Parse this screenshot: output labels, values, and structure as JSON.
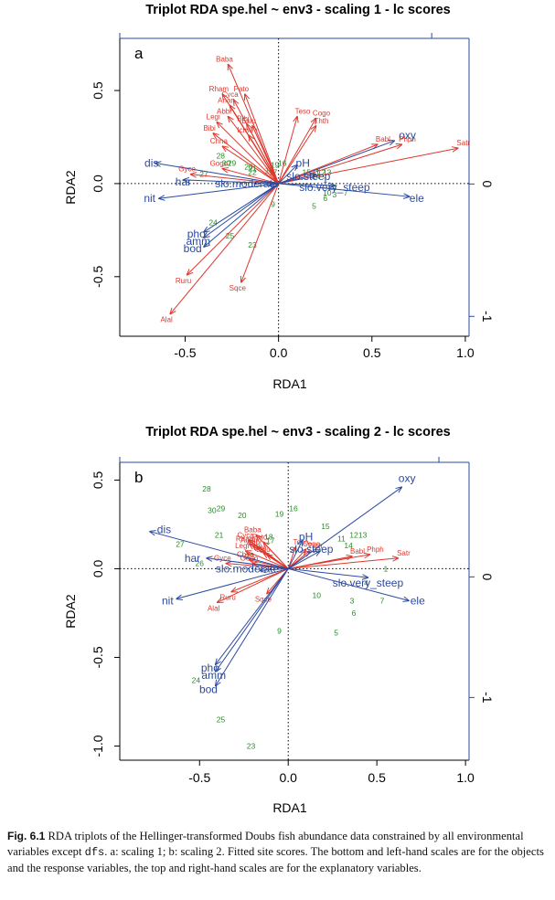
{
  "figure_caption": {
    "label": "Fig. 6.1",
    "text_before_code": "RDA triplots of the Hellinger-transformed Doubs fish abundance data constrained by all environmental variables except ",
    "code": "dfs",
    "text_after_code": ". a: scaling 1; b: scaling 2. Fitted site scores. The bottom and left-hand scales are for the objects and the response variables, the top and right-hand scales are for the explanatory variables."
  },
  "colors": {
    "species": "#e0362c",
    "env": "#2b4aa0",
    "sites": "#2d8a2d",
    "axis": "#000000",
    "panel_frame": "#000000",
    "secondary_axis": "#2b4aa0"
  },
  "chart_data": [
    {
      "type": "scatter",
      "panel_label": "a",
      "title": "Triplot RDA spe.hel ~ env3 - scaling 1 - lc scores",
      "xlabel": "RDA1",
      "ylabel": "RDA2",
      "xlim": [
        -0.85,
        1.02
      ],
      "ylim": [
        -0.82,
        0.78
      ],
      "xticks": [
        -0.5,
        0.0,
        0.5,
        1.0
      ],
      "xtick_labels": [
        "-0.5",
        "0.0",
        "0.5",
        "1.0"
      ],
      "yticks": [
        -0.5,
        0.0,
        0.5
      ],
      "ytick_labels": [
        "-0.5",
        "0.0",
        "0.5"
      ],
      "right_axis": {
        "range": [
          -1.15,
          1.1
        ],
        "ticks": [
          -1,
          0
        ],
        "tick_labels": [
          "-1",
          "0"
        ]
      },
      "top_axis_ticks": [
        -0.85,
        0.82
      ],
      "reference_lines": {
        "x": 0,
        "y": 0,
        "style": "dotted"
      },
      "grid": false,
      "species_arrows": [
        {
          "name": "Baba",
          "x": -0.27,
          "y": 0.64
        },
        {
          "name": "Rham",
          "x": -0.3,
          "y": 0.48
        },
        {
          "name": "Pato",
          "x": -0.18,
          "y": 0.48
        },
        {
          "name": "Cyca",
          "x": -0.24,
          "y": 0.45
        },
        {
          "name": "Anan",
          "x": -0.26,
          "y": 0.42
        },
        {
          "name": "Abbr",
          "x": -0.27,
          "y": 0.36
        },
        {
          "name": "Legi",
          "x": -0.33,
          "y": 0.33
        },
        {
          "name": "Blbj",
          "x": -0.17,
          "y": 0.32
        },
        {
          "name": "Eslu",
          "x": -0.14,
          "y": 0.31
        },
        {
          "name": "Icme",
          "x": -0.16,
          "y": 0.26
        },
        {
          "name": "Bibi",
          "x": -0.35,
          "y": 0.27
        },
        {
          "name": "Chna",
          "x": -0.3,
          "y": 0.2
        },
        {
          "name": "Teso",
          "x": 0.1,
          "y": 0.36
        },
        {
          "name": "Cogo",
          "x": 0.2,
          "y": 0.35
        },
        {
          "name": "Thth",
          "x": 0.2,
          "y": 0.31
        },
        {
          "name": "Babl",
          "x": 0.53,
          "y": 0.21
        },
        {
          "name": "Phph",
          "x": 0.66,
          "y": 0.21
        },
        {
          "name": "Satr",
          "x": 0.96,
          "y": 0.19
        },
        {
          "name": "Gogo",
          "x": -0.3,
          "y": 0.08
        },
        {
          "name": "Gyce",
          "x": -0.47,
          "y": 0.05
        },
        {
          "name": "Ruru",
          "x": -0.49,
          "y": -0.49
        },
        {
          "name": "Alal",
          "x": -0.58,
          "y": -0.7
        },
        {
          "name": "Sqce",
          "x": -0.2,
          "y": -0.53
        }
      ],
      "env_arrows": [
        {
          "name": "oxy",
          "x": 0.62,
          "y": 0.23
        },
        {
          "name": "pH",
          "x": 0.1,
          "y": 0.1
        },
        {
          "name": "slo.steep",
          "x": 0.2,
          "y": 0.05
        },
        {
          "name": "slo.very_steep",
          "x": 0.3,
          "y": -0.01
        },
        {
          "name": "ele",
          "x": 0.7,
          "y": -0.07
        },
        {
          "name": "slo.moderate",
          "x": -0.05,
          "y": -0.01
        },
        {
          "name": "dis",
          "x": -0.66,
          "y": 0.11
        },
        {
          "name": "har",
          "x": -0.51,
          "y": 0.02
        },
        {
          "name": "nit",
          "x": -0.64,
          "y": -0.08
        },
        {
          "name": "pho",
          "x": -0.4,
          "y": -0.26
        },
        {
          "name": "amm",
          "x": -0.4,
          "y": -0.29
        },
        {
          "name": "bod",
          "x": -0.4,
          "y": -0.34
        }
      ],
      "env_labels": [
        {
          "name": "oxy",
          "x": 0.69,
          "y": 0.26
        },
        {
          "name": "pH",
          "x": 0.13,
          "y": 0.11
        },
        {
          "name": "slo.steep",
          "x": 0.16,
          "y": 0.04
        },
        {
          "name": "slo.very_steep",
          "x": 0.3,
          "y": -0.02
        },
        {
          "name": "ele",
          "x": 0.74,
          "y": -0.08
        },
        {
          "name": "slo.moderate",
          "x": -0.17,
          "y": 0.0
        },
        {
          "name": "dis",
          "x": -0.68,
          "y": 0.11
        },
        {
          "name": "har",
          "x": -0.51,
          "y": 0.01
        },
        {
          "name": "nit",
          "x": -0.69,
          "y": -0.08
        },
        {
          "name": "pho",
          "x": -0.44,
          "y": -0.27
        },
        {
          "name": "amm",
          "x": -0.43,
          "y": -0.31
        },
        {
          "name": "bod",
          "x": -0.46,
          "y": -0.35
        }
      ],
      "sites": [
        {
          "name": "28",
          "x": -0.31,
          "y": 0.15
        },
        {
          "name": "30",
          "x": -0.28,
          "y": 0.11
        },
        {
          "name": "29",
          "x": -0.25,
          "y": 0.11
        },
        {
          "name": "20",
          "x": -0.16,
          "y": 0.09
        },
        {
          "name": "21",
          "x": -0.14,
          "y": 0.08
        },
        {
          "name": "19",
          "x": -0.02,
          "y": 0.1
        },
        {
          "name": "16",
          "x": 0.02,
          "y": 0.11
        },
        {
          "name": "22",
          "x": -0.14,
          "y": 0.06
        },
        {
          "name": "18",
          "x": -0.05,
          "y": 0.07
        },
        {
          "name": "17",
          "x": -0.03,
          "y": 0.06
        },
        {
          "name": "15",
          "x": 0.15,
          "y": 0.06
        },
        {
          "name": "11",
          "x": 0.2,
          "y": 0.06
        },
        {
          "name": "12",
          "x": 0.23,
          "y": 0.06
        },
        {
          "name": "13",
          "x": 0.26,
          "y": 0.06
        },
        {
          "name": "14",
          "x": 0.2,
          "y": 0.04
        },
        {
          "name": "4",
          "x": 0.3,
          "y": -0.02
        },
        {
          "name": "10",
          "x": 0.26,
          "y": -0.05
        },
        {
          "name": "3",
          "x": 0.3,
          "y": -0.06
        },
        {
          "name": "6",
          "x": 0.25,
          "y": -0.08
        },
        {
          "name": "1",
          "x": 0.25,
          "y": 0.02
        },
        {
          "name": "7",
          "x": 0.36,
          "y": -0.05
        },
        {
          "name": "9",
          "x": -0.03,
          "y": -0.11
        },
        {
          "name": "5",
          "x": 0.19,
          "y": -0.12
        },
        {
          "name": "27",
          "x": -0.4,
          "y": 0.05
        },
        {
          "name": "24",
          "x": -0.35,
          "y": -0.21
        },
        {
          "name": "25",
          "x": -0.26,
          "y": -0.28
        },
        {
          "name": "23",
          "x": -0.14,
          "y": -0.33
        },
        {
          "name": "2",
          "x": 0.28,
          "y": -0.02
        }
      ]
    },
    {
      "type": "scatter",
      "panel_label": "b",
      "title": "Triplot RDA spe.hel ~ env3 - scaling 2 - lc scores",
      "xlabel": "RDA1",
      "ylabel": "RDA2",
      "xlim": [
        -0.95,
        1.02
      ],
      "ylim": [
        -1.08,
        0.6
      ],
      "xticks": [
        -0.5,
        0.0,
        0.5,
        1.0
      ],
      "xtick_labels": [
        "-0.5",
        "0.0",
        "0.5",
        "1.0"
      ],
      "yticks": [
        -1.0,
        -0.5,
        0.0,
        0.5
      ],
      "ytick_labels": [
        "-1.0",
        "-0.5",
        "0.0",
        "0.5"
      ],
      "right_axis": {
        "range": [
          -1.52,
          0.95
        ],
        "ticks": [
          -1,
          0
        ],
        "tick_labels": [
          "-1",
          "0"
        ]
      },
      "top_axis_ticks": [
        -0.95,
        0.85
      ],
      "reference_lines": {
        "x": 0,
        "y": 0,
        "style": "dotted"
      },
      "grid": false,
      "species_arrows": [
        {
          "name": "Baba",
          "x": -0.18,
          "y": 0.19
        },
        {
          "name": "Cyca",
          "x": -0.22,
          "y": 0.16
        },
        {
          "name": "Pato",
          "x": -0.14,
          "y": 0.15
        },
        {
          "name": "Rham",
          "x": -0.22,
          "y": 0.14
        },
        {
          "name": "Anan",
          "x": -0.2,
          "y": 0.13
        },
        {
          "name": "Abbr",
          "x": -0.17,
          "y": 0.12
        },
        {
          "name": "Legi",
          "x": -0.24,
          "y": 0.1
        },
        {
          "name": "Blbj",
          "x": -0.14,
          "y": 0.09
        },
        {
          "name": "Eslu",
          "x": -0.12,
          "y": 0.08
        },
        {
          "name": "Chna",
          "x": -0.22,
          "y": 0.05
        },
        {
          "name": "Gogo",
          "x": -0.2,
          "y": 0.03
        },
        {
          "name": "Gyce",
          "x": -0.35,
          "y": 0.03
        },
        {
          "name": "Teso",
          "x": 0.04,
          "y": 0.12
        },
        {
          "name": "Cogo",
          "x": 0.1,
          "y": 0.11
        },
        {
          "name": "Thth",
          "x": 0.12,
          "y": 0.1
        },
        {
          "name": "Babl",
          "x": 0.36,
          "y": 0.07
        },
        {
          "name": "Phph",
          "x": 0.46,
          "y": 0.08
        },
        {
          "name": "Satr",
          "x": 0.62,
          "y": 0.06
        },
        {
          "name": "Alal",
          "x": -0.4,
          "y": -0.19
        },
        {
          "name": "Ruru",
          "x": -0.32,
          "y": -0.13
        },
        {
          "name": "Sqce",
          "x": -0.12,
          "y": -0.14
        }
      ],
      "env_arrows": [
        {
          "name": "oxy",
          "x": 0.64,
          "y": 0.46
        },
        {
          "name": "pH",
          "x": 0.08,
          "y": 0.16
        },
        {
          "name": "slo.steep",
          "x": 0.18,
          "y": 0.1
        },
        {
          "name": "slo.very_steep",
          "x": 0.45,
          "y": -0.05
        },
        {
          "name": "ele",
          "x": 0.68,
          "y": -0.18
        },
        {
          "name": "slo.moderate",
          "x": -0.16,
          "y": -0.01
        },
        {
          "name": "dis",
          "x": -0.78,
          "y": 0.21
        },
        {
          "name": "har",
          "x": -0.46,
          "y": 0.06
        },
        {
          "name": "nit",
          "x": -0.63,
          "y": -0.17
        },
        {
          "name": "pho",
          "x": -0.41,
          "y": -0.54
        },
        {
          "name": "amm",
          "x": -0.41,
          "y": -0.58
        },
        {
          "name": "bod",
          "x": -0.41,
          "y": -0.66
        }
      ],
      "env_labels": [
        {
          "name": "oxy",
          "x": 0.67,
          "y": 0.51
        },
        {
          "name": "pH",
          "x": 0.1,
          "y": 0.18
        },
        {
          "name": "slo.steep",
          "x": 0.13,
          "y": 0.11
        },
        {
          "name": "slo.very_steep",
          "x": 0.45,
          "y": -0.08
        },
        {
          "name": "ele",
          "x": 0.73,
          "y": -0.18
        },
        {
          "name": "slo.moderate",
          "x": -0.23,
          "y": -0.0
        },
        {
          "name": "dis",
          "x": -0.7,
          "y": 0.22
        },
        {
          "name": "har",
          "x": -0.54,
          "y": 0.06
        },
        {
          "name": "nit",
          "x": -0.68,
          "y": -0.18
        },
        {
          "name": "pho",
          "x": -0.44,
          "y": -0.56
        },
        {
          "name": "amm",
          "x": -0.42,
          "y": -0.6
        },
        {
          "name": "bod",
          "x": -0.45,
          "y": -0.68
        }
      ],
      "sites": [
        {
          "name": "28",
          "x": -0.46,
          "y": 0.45
        },
        {
          "name": "30",
          "x": -0.43,
          "y": 0.33
        },
        {
          "name": "29",
          "x": -0.38,
          "y": 0.34
        },
        {
          "name": "20",
          "x": -0.26,
          "y": 0.3
        },
        {
          "name": "19",
          "x": -0.05,
          "y": 0.31
        },
        {
          "name": "16",
          "x": 0.03,
          "y": 0.34
        },
        {
          "name": "15",
          "x": 0.21,
          "y": 0.24
        },
        {
          "name": "21",
          "x": -0.39,
          "y": 0.19
        },
        {
          "name": "18",
          "x": -0.11,
          "y": 0.18
        },
        {
          "name": "17",
          "x": -0.1,
          "y": 0.16
        },
        {
          "name": "11",
          "x": 0.3,
          "y": 0.17
        },
        {
          "name": "12",
          "x": 0.37,
          "y": 0.19
        },
        {
          "name": "13",
          "x": 0.42,
          "y": 0.19
        },
        {
          "name": "14",
          "x": 0.34,
          "y": 0.13
        },
        {
          "name": "27",
          "x": -0.61,
          "y": 0.14
        },
        {
          "name": "22",
          "x": -0.22,
          "y": 0.07
        },
        {
          "name": "4",
          "x": 0.44,
          "y": -0.08
        },
        {
          "name": "1",
          "x": 0.55,
          "y": -0.0
        },
        {
          "name": "10",
          "x": 0.16,
          "y": -0.15
        },
        {
          "name": "3",
          "x": 0.36,
          "y": -0.18
        },
        {
          "name": "7",
          "x": 0.53,
          "y": -0.18
        },
        {
          "name": "6",
          "x": 0.37,
          "y": -0.25
        },
        {
          "name": "9",
          "x": -0.05,
          "y": -0.35
        },
        {
          "name": "5",
          "x": 0.27,
          "y": -0.36
        },
        {
          "name": "24",
          "x": -0.52,
          "y": -0.63
        },
        {
          "name": "25",
          "x": -0.38,
          "y": -0.85
        },
        {
          "name": "23",
          "x": -0.21,
          "y": -1.0
        },
        {
          "name": "26",
          "x": -0.5,
          "y": 0.03
        }
      ]
    }
  ]
}
